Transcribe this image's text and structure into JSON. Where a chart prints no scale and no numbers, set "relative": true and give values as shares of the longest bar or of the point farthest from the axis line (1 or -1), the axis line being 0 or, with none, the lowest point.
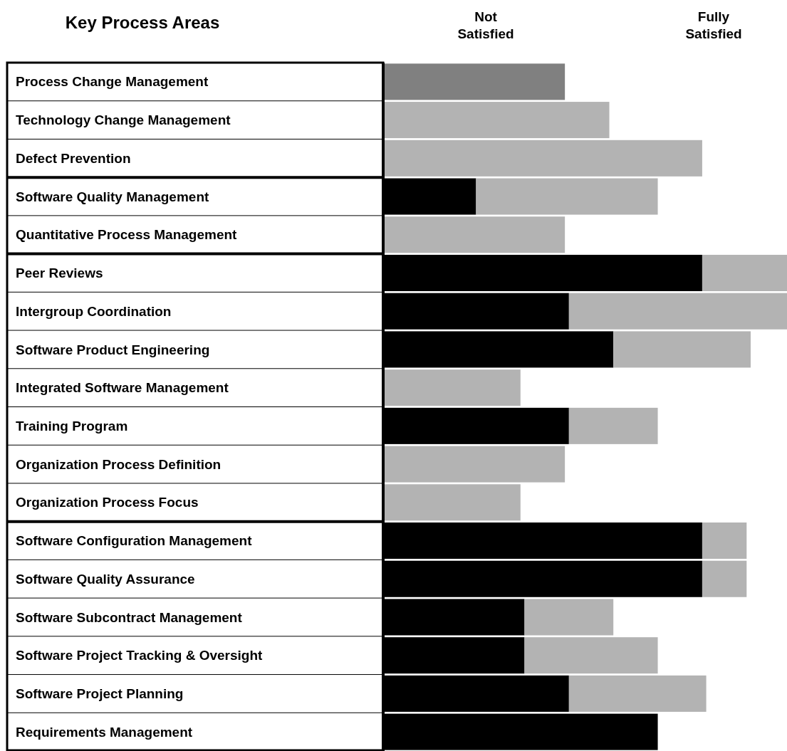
{
  "chart_data": {
    "type": "bar",
    "orientation": "horizontal",
    "stacked": true,
    "title": "Key Process Areas",
    "categories": [
      "Process Change Management",
      "Technology Change Management",
      "Defect Prevention",
      "Software Quality Management",
      "Quantitative Process Management",
      "Peer Reviews",
      "Intergroup Coordination",
      "Software Product Engineering",
      "Integrated Software Management",
      "Training Program",
      "Organization Process Definition",
      "Organization Process Focus",
      "Software Configuration Management",
      "Software Quality Assurance",
      "Software Subcontract Management",
      "Software Project Tracking & Oversight",
      "Software Project Planning",
      "Requirements Management"
    ],
    "series": [
      {
        "color": "#000000",
        "values": [
          null,
          null,
          null,
          0.23,
          null,
          0.79,
          0.46,
          0.57,
          null,
          0.46,
          null,
          null,
          0.79,
          0.79,
          0.35,
          0.35,
          0.46,
          0.68
        ]
      },
      {
        "color": "#b3b3b3",
        "values": [
          null,
          0.56,
          0.79,
          0.45,
          0.45,
          0.21,
          0.54,
          0.34,
          0.34,
          0.22,
          0.45,
          0.34,
          0.11,
          0.11,
          0.22,
          0.33,
          0.34,
          null
        ]
      },
      {
        "color": "#808080",
        "values": [
          0.45,
          null,
          null,
          null,
          null,
          null,
          null,
          null,
          null,
          null,
          null,
          null,
          null,
          null,
          null,
          null,
          null,
          null
        ]
      }
    ],
    "annotations": [
      "Not Satisfied",
      "Fully Satisfied"
    ],
    "relative": true
  }
}
